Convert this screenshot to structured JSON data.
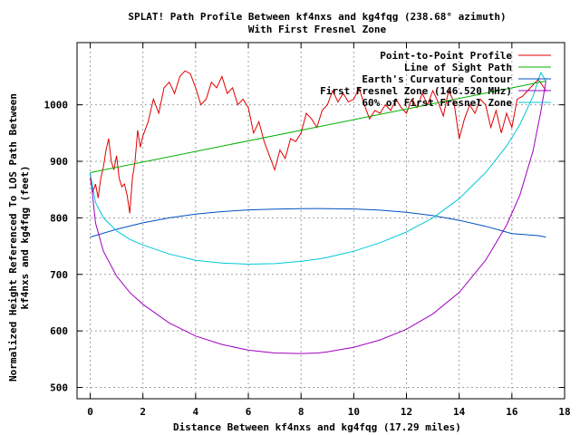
{
  "chart_data": {
    "type": "line",
    "title_line1": "SPLAT! Path Profile Between kf4nxs and kg4fqg (238.68° azimuth)",
    "title_line2": "With First Fresnel Zone",
    "xlabel": "Distance Between kf4nxs and kg4fqg (17.29 miles)",
    "ylabel_line1": "Normalized Height Referenced To LOS Path Between",
    "ylabel_line2": "kf4nxs and kg4fqg (feet)",
    "xlim": [
      -0.5,
      18
    ],
    "ylim": [
      480,
      1110
    ],
    "xticks": [
      0,
      2,
      4,
      6,
      8,
      10,
      12,
      14,
      16,
      18
    ],
    "yticks": [
      500,
      600,
      700,
      800,
      900,
      1000
    ],
    "grid": true,
    "legend_position": "top-right",
    "series": [
      {
        "name": "Point-to-Point Profile",
        "color": "#e00000",
        "x": [
          0,
          0.1,
          0.2,
          0.3,
          0.4,
          0.5,
          0.6,
          0.7,
          0.8,
          0.9,
          1.0,
          1.1,
          1.2,
          1.3,
          1.4,
          1.5,
          1.6,
          1.7,
          1.8,
          1.9,
          2.0,
          2.2,
          2.4,
          2.6,
          2.8,
          3.0,
          3.2,
          3.4,
          3.6,
          3.8,
          4.0,
          4.2,
          4.4,
          4.6,
          4.8,
          5.0,
          5.2,
          5.4,
          5.6,
          5.8,
          6.0,
          6.2,
          6.4,
          6.6,
          6.8,
          7.0,
          7.2,
          7.4,
          7.6,
          7.8,
          8.0,
          8.2,
          8.4,
          8.6,
          8.8,
          9.0,
          9.2,
          9.4,
          9.6,
          9.8,
          10.0,
          10.2,
          10.4,
          10.6,
          10.8,
          11.0,
          11.2,
          11.4,
          11.6,
          11.8,
          12.0,
          12.2,
          12.4,
          12.6,
          12.8,
          13.0,
          13.2,
          13.4,
          13.6,
          13.8,
          14.0,
          14.2,
          14.4,
          14.6,
          14.8,
          15.0,
          15.2,
          15.4,
          15.6,
          15.8,
          16.0,
          16.2,
          16.4,
          16.6,
          16.8,
          17.0,
          17.29
        ],
        "y": [
          870,
          845,
          860,
          835,
          870,
          890,
          920,
          940,
          900,
          885,
          910,
          870,
          855,
          860,
          840,
          808,
          870,
          900,
          955,
          925,
          945,
          970,
          1010,
          985,
          1030,
          1040,
          1020,
          1050,
          1060,
          1055,
          1030,
          1000,
          1010,
          1040,
          1030,
          1050,
          1020,
          1030,
          1000,
          1010,
          995,
          950,
          970,
          935,
          910,
          885,
          920,
          905,
          940,
          935,
          950,
          985,
          975,
          960,
          990,
          1000,
          1025,
          1005,
          1020,
          1005,
          1010,
          1030,
          1000,
          975,
          990,
          985,
          1000,
          990,
          1010,
          995,
          985,
          1010,
          995,
          1020,
          1000,
          1025,
          1005,
          980,
          1025,
          1005,
          940,
          975,
          1000,
          985,
          1010,
          1000,
          960,
          990,
          950,
          985,
          960,
          1010,
          1015,
          1025,
          1035,
          1045,
          1025
        ]
      },
      {
        "name": "Line of Sight Path",
        "color": "#00b000",
        "x": [
          0,
          17.29
        ],
        "y": [
          880,
          1042
        ]
      },
      {
        "name": "Earth's Curvature Contour",
        "color": "#0050c0",
        "x": [
          0,
          1,
          2,
          3,
          4,
          5,
          6,
          7,
          8,
          8.645,
          9,
          10,
          11,
          12,
          13,
          14,
          15,
          16,
          17,
          17.29
        ],
        "y": [
          766,
          779.8,
          791.1,
          800.0,
          806.6,
          811.1,
          814.0,
          815.5,
          816.3,
          816.5,
          816.4,
          815.6,
          813.6,
          809.9,
          804.0,
          795.7,
          785.0,
          772.3,
          768.5,
          766
        ]
      },
      {
        "name": "First Fresnel Zone (146.520 MHz)",
        "color": "#a000c0",
        "x": [
          0,
          0.2,
          0.5,
          1,
          1.5,
          2,
          3,
          4,
          5,
          6,
          7,
          8,
          8.645,
          9,
          10,
          11,
          12,
          13,
          14,
          15,
          15.8,
          16.3,
          16.8,
          17.1,
          17.29
        ],
        "y": [
          880,
          791,
          741,
          697,
          668,
          647,
          614,
          591,
          576,
          566,
          561,
          560,
          561,
          563,
          571,
          584,
          603,
          630,
          668,
          725,
          787,
          840,
          918,
          988,
          1042
        ]
      },
      {
        "name": "60% of First Fresnel Zone",
        "color": "#00c8d8",
        "x": [
          0,
          0.2,
          0.5,
          1,
          1.5,
          2,
          3,
          4,
          5,
          6,
          7,
          8,
          8.645,
          9,
          10,
          11,
          12,
          13,
          14,
          15,
          15.8,
          16.3,
          16.8,
          17.1,
          17.29
        ],
        "y": [
          880,
          827,
          800,
          777,
          762,
          752,
          736,
          725,
          720,
          718,
          719,
          723,
          727,
          730,
          741,
          756,
          775,
          800,
          834,
          880,
          927,
          965,
          1015,
          1057,
          1042
        ]
      }
    ]
  }
}
